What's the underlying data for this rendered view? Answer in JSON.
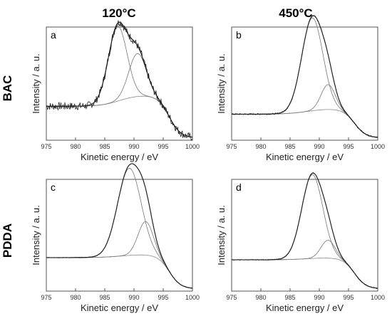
{
  "column_titles": [
    "120°C",
    "450°C"
  ],
  "row_titles": [
    "BAC",
    "PDDA"
  ],
  "chart_data": [
    {
      "type": "line",
      "panel": "a",
      "xlabel": "Kinetic energy / eV",
      "ylabel": "Intensity / a. u.",
      "xlim": [
        975,
        1000
      ],
      "xticks": [
        975,
        980,
        985,
        990,
        995,
        1000
      ],
      "noise": 0.035,
      "baseline": {
        "y0": 0.3,
        "y_hi": 0.4,
        "center": 987.5,
        "width": 1.6,
        "y_end": 0.02
      },
      "components": [
        {
          "name": "",
          "center": 987.2,
          "height": 0.66,
          "sigma": 1.6
        },
        {
          "name": "",
          "center": 990.6,
          "height": 0.38,
          "sigma": 1.5
        }
      ]
    },
    {
      "type": "line",
      "panel": "b",
      "xlabel": "Kinetic energy / eV",
      "ylabel": "Intensity / a. u.",
      "xlim": [
        975,
        1000
      ],
      "xticks": [
        975,
        980,
        985,
        990,
        995,
        1000
      ],
      "noise": 0.006,
      "baseline": {
        "y0": 0.23,
        "y_hi": 0.28,
        "center": 988.0,
        "width": 1.8,
        "y_end": 0.02
      },
      "components": [
        {
          "name": "",
          "center": 988.8,
          "height": 0.82,
          "sigma": 1.8
        },
        {
          "name": "",
          "center": 991.5,
          "height": 0.22,
          "sigma": 1.2
        }
      ]
    },
    {
      "type": "line",
      "panel": "c",
      "xlabel": "Kinetic energy / eV",
      "ylabel": "Intensity / a. u.",
      "xlim": [
        975,
        1000
      ],
      "xticks": [
        975,
        980,
        985,
        990,
        995,
        1000
      ],
      "noise": 0.003,
      "baseline": {
        "y0": 0.3,
        "y_hi": 0.33,
        "center": 988.0,
        "width": 1.8,
        "y_end": 0.02
      },
      "components": [
        {
          "name": "",
          "center": 989.2,
          "height": 0.78,
          "sigma": 2.0
        },
        {
          "name": "",
          "center": 992.0,
          "height": 0.3,
          "sigma": 1.3
        }
      ]
    },
    {
      "type": "line",
      "panel": "d",
      "xlabel": "Kinetic energy / eV",
      "ylabel": "Intensity / a. u.",
      "xlim": [
        975,
        1000
      ],
      "xticks": [
        975,
        980,
        985,
        990,
        995,
        1000
      ],
      "noise": 0.004,
      "baseline": {
        "y0": 0.28,
        "y_hi": 0.3,
        "center": 988.0,
        "width": 1.8,
        "y_end": 0.02
      },
      "components": [
        {
          "name": "",
          "center": 988.8,
          "height": 0.75,
          "sigma": 1.8
        },
        {
          "name": "",
          "center": 991.5,
          "height": 0.16,
          "sigma": 1.2
        }
      ]
    }
  ]
}
